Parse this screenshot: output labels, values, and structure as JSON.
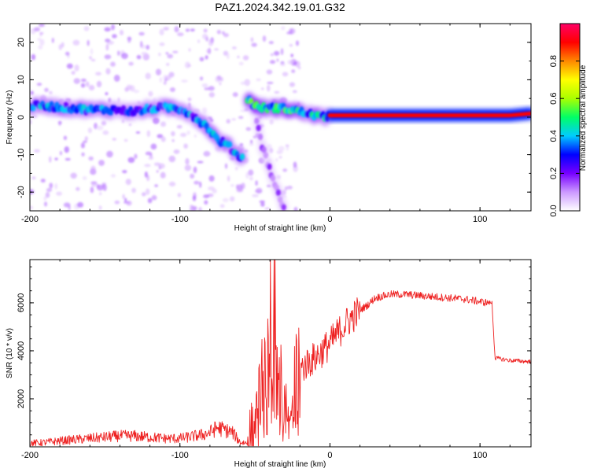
{
  "figure": {
    "title": "PAZ1.2024.342.19.01.G32"
  },
  "chart_data": [
    {
      "type": "heatmap",
      "xlabel": "Height of straight line (km)",
      "ylabel": "Frequency (Hz)",
      "xlim": [
        -200,
        134
      ],
      "ylim": [
        -25,
        25
      ],
      "xticks": [
        -200,
        -100,
        0,
        100
      ],
      "yticks": [
        -20,
        -10,
        0,
        10,
        20
      ],
      "colorbar": {
        "label": "Normalized spectral amplitude",
        "range": [
          0,
          1
        ],
        "ticks": [
          0.0,
          0.2,
          0.4,
          0.6,
          0.8
        ],
        "colors": [
          "#ffffff",
          "#cc99ff",
          "#7700ff",
          "#0000ff",
          "#00ccff",
          "#00ff66",
          "#aaff00",
          "#ffff00",
          "#ff8800",
          "#ff0000",
          "#ff0066"
        ]
      },
      "ridges": [
        {
          "x": [
            -200,
            -190,
            -175,
            -160,
            -145,
            -130,
            -115,
            -105,
            -98,
            -90,
            -82,
            -75,
            -68,
            -62,
            -58
          ],
          "freq": [
            3,
            3,
            2.5,
            2,
            2,
            1.5,
            2.5,
            2.5,
            2,
            0,
            -2.5,
            -6,
            -7.5,
            -10,
            -11
          ],
          "amplitude": 0.35
        },
        {
          "x": [
            -50,
            -45,
            -40,
            -35,
            -30
          ],
          "freq": [
            2,
            -8,
            -14,
            -20,
            -25
          ],
          "amplitude": 0.15
        },
        {
          "x": [
            -55,
            -50,
            -45,
            -35,
            -25,
            -15,
            -5,
            0
          ],
          "freq": [
            5,
            3,
            2.5,
            2.5,
            2,
            1,
            0,
            0.5
          ],
          "amplitude": 0.45
        },
        {
          "x": [
            0,
            20,
            40,
            60,
            80,
            100,
            120,
            134
          ],
          "freq": [
            0.5,
            0.5,
            0.5,
            0.5,
            0.5,
            0.5,
            0.5,
            1
          ],
          "amplitude": 0.9
        }
      ]
    },
    {
      "type": "line",
      "xlabel": "Height of straight line (km)",
      "ylabel": "SNR (10 * v/v)",
      "xlim": [
        -200,
        134
      ],
      "ylim": [
        0,
        7800
      ],
      "xticks": [
        -200,
        -100,
        0,
        100
      ],
      "yticks": [
        2000,
        4000,
        6000
      ],
      "color": "#ee2222",
      "series": [
        {
          "x": [
            -200,
            -190,
            -180,
            -170,
            -160,
            -150,
            -140,
            -130,
            -120,
            -110,
            -100,
            -95,
            -90,
            -85,
            -80,
            -75,
            -70,
            -65,
            -60,
            -55,
            -50,
            -45,
            -40,
            -35,
            -30,
            -25,
            -20,
            -15,
            -10,
            -5,
            0,
            5,
            10,
            15,
            20,
            25,
            30,
            40,
            50,
            60,
            70,
            80,
            90,
            100,
            105,
            108,
            110,
            115,
            120,
            125,
            134
          ],
          "values": [
            150,
            180,
            250,
            300,
            350,
            400,
            450,
            450,
            400,
            350,
            350,
            400,
            450,
            500,
            600,
            800,
            700,
            600,
            200,
            150,
            150,
            3000,
            3800,
            3500,
            2800,
            3000,
            3200,
            3500,
            3700,
            4000,
            4300,
            4700,
            5100,
            5400,
            5700,
            5900,
            6200,
            6350,
            6350,
            6300,
            6250,
            6200,
            6150,
            6050,
            6000,
            6000,
            3700,
            3650,
            3600,
            3580,
            3550
          ]
        }
      ]
    }
  ]
}
